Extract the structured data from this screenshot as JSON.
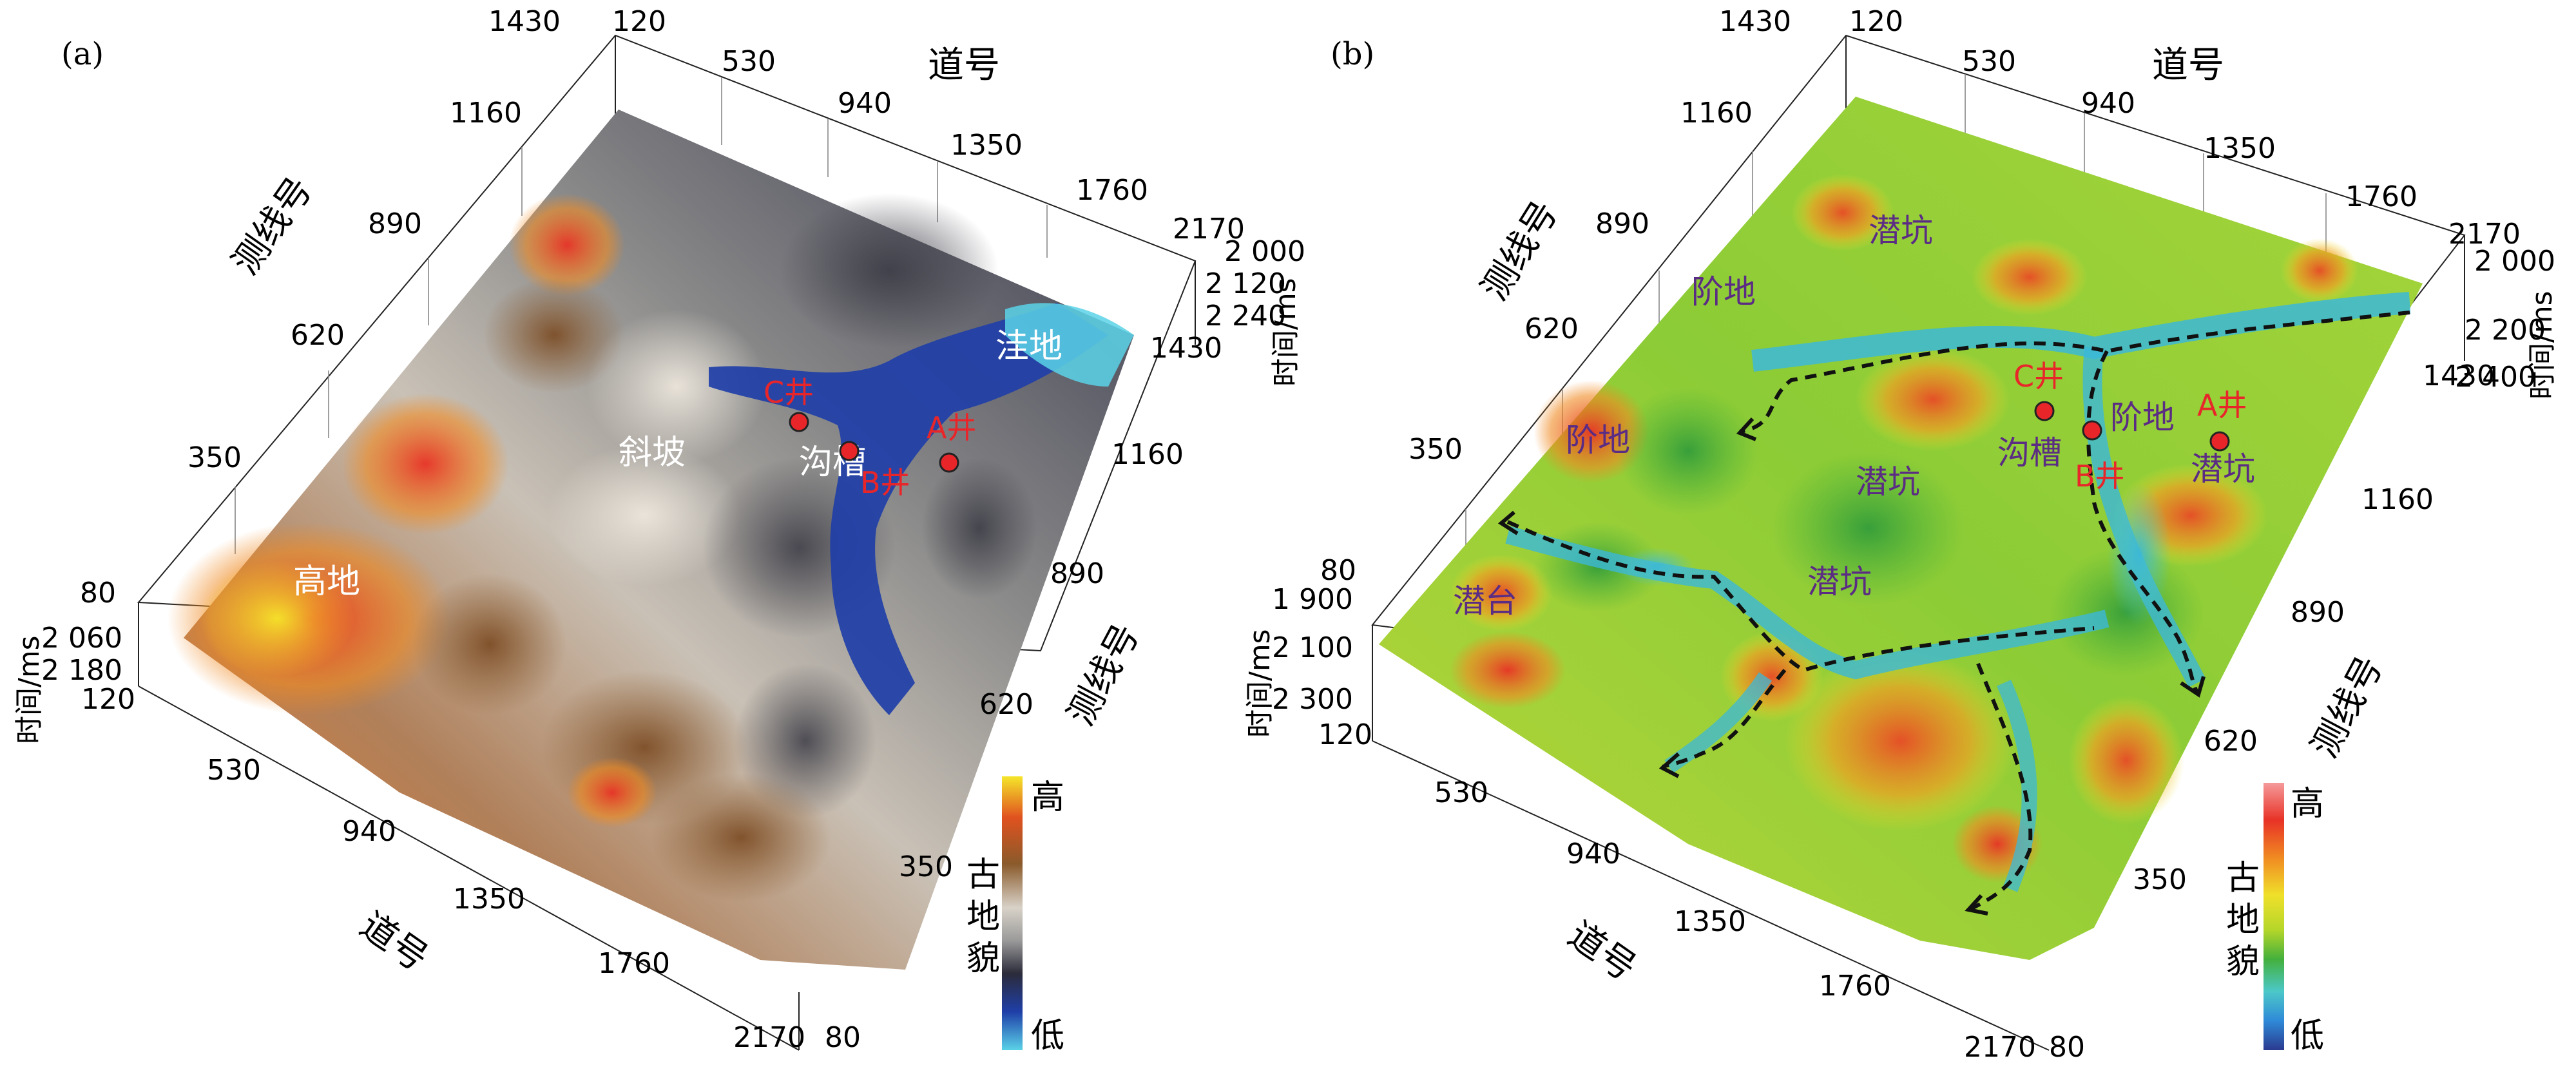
{
  "figure": {
    "panels": [
      {
        "panel_label": "(a)",
        "x_axis_title": "道号",
        "y_axis_title": "测线号",
        "z_axis_title": "时间/ms",
        "back_y_ticks": [
          "1430",
          "1160",
          "890",
          "620",
          "350",
          "80"
        ],
        "back_x_ticks": [
          "120",
          "530",
          "940",
          "1350",
          "1760",
          "2170"
        ],
        "front_x_ticks": [
          "120",
          "530",
          "940",
          "1350",
          "1760",
          "2170"
        ],
        "front_y_ticks": [
          "80",
          "350",
          "620",
          "890",
          "1160",
          "1430"
        ],
        "z_ticks_right": [
          "2 000",
          "2 120",
          "2 240"
        ],
        "z_ticks_left": [
          "2 060",
          "2 180"
        ],
        "regions": [
          "高地",
          "斜坡",
          "沟槽",
          "洼地"
        ],
        "wells": [
          "C井",
          "B井",
          "A井"
        ],
        "colorbar": {
          "high": "高",
          "low": "低",
          "title": [
            "古",
            "地",
            "貌"
          ]
        }
      },
      {
        "panel_label": "(b)",
        "x_axis_title": "道号",
        "y_axis_title": "测线号",
        "z_axis_title": "时间/ms",
        "back_y_ticks": [
          "1430",
          "1160",
          "890",
          "620",
          "350",
          "80"
        ],
        "back_x_ticks": [
          "120",
          "530",
          "940",
          "1350",
          "1760",
          "2170"
        ],
        "front_x_ticks": [
          "120",
          "530",
          "940",
          "1350",
          "1760",
          "2170"
        ],
        "front_y_ticks": [
          "80",
          "350",
          "620",
          "890",
          "1160",
          "1430"
        ],
        "z_ticks_right": [
          "2 000",
          "2 200",
          "2 400"
        ],
        "z_ticks_left": [
          "1 900",
          "2 100",
          "2 300"
        ],
        "regions": [
          "阶地",
          "潜坑",
          "阶地",
          "潜坑",
          "沟槽",
          "阶地",
          "潜坑",
          "潜坑",
          "潜台"
        ],
        "wells": [
          "C井",
          "B井",
          "A井"
        ],
        "colorbar": {
          "high": "高",
          "low": "低",
          "title": [
            "古",
            "地",
            "貌"
          ]
        }
      }
    ],
    "colors": {
      "a_scale": [
        "#5ad2e8",
        "#1f3fa8",
        "#2b2b3a",
        "#9a9a9a",
        "#d8d2c8",
        "#8a5a2b",
        "#e0521f",
        "#f5e62a"
      ],
      "b_scale": [
        "#2b3a8f",
        "#2f8ad8",
        "#4cc8c8",
        "#43b03c",
        "#b5d62a",
        "#f0e02a",
        "#f08a22",
        "#e83226",
        "#f59a9a"
      ],
      "well_marker": "#e8262a"
    }
  }
}
